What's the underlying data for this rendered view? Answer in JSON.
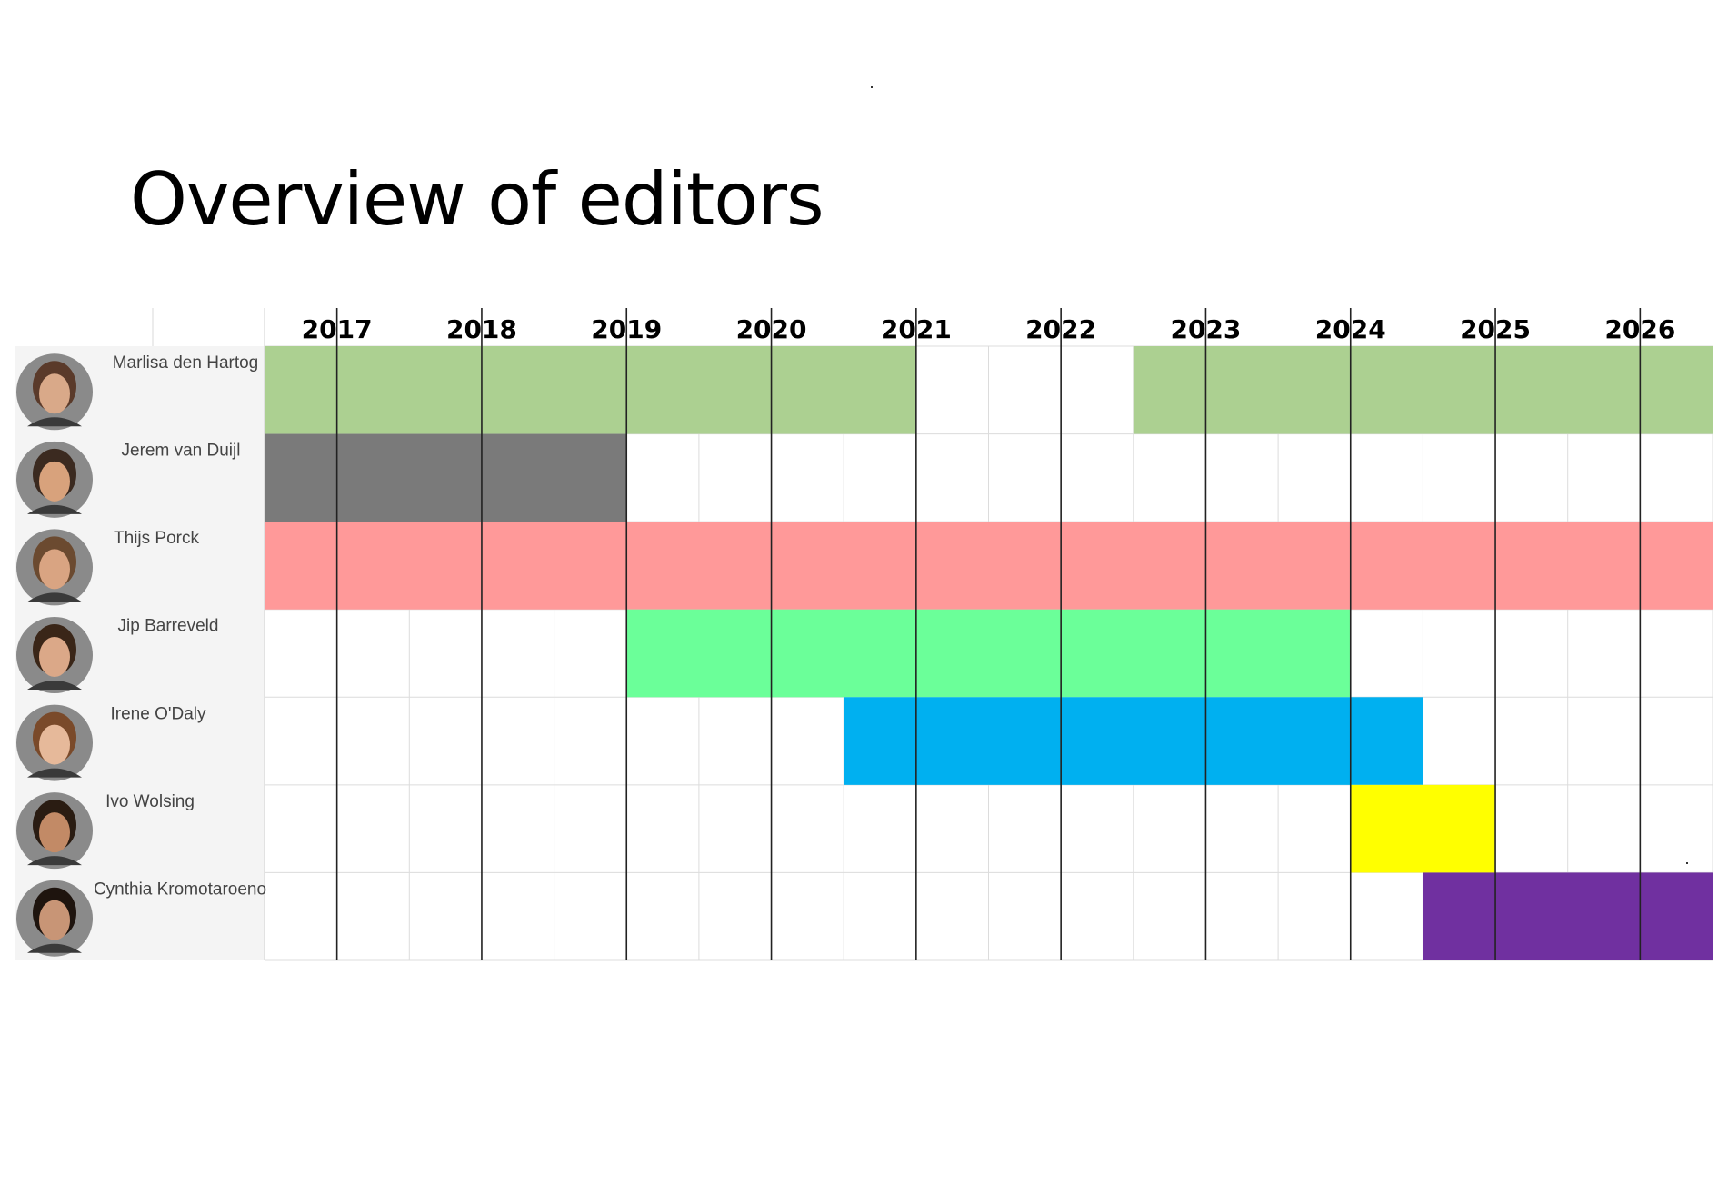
{
  "title": "Overview of editors",
  "chart_data": {
    "type": "bar",
    "subtype": "gantt",
    "title": "Overview of editors",
    "x_unit": "year",
    "xlim": [
      2016.5,
      2026.5
    ],
    "categories": [
      "2017",
      "2018",
      "2019",
      "2020",
      "2021",
      "2022",
      "2023",
      "2024",
      "2025",
      "2026"
    ],
    "editors": [
      {
        "name": "Marlisa den Hartog",
        "color": "#acd091",
        "skin": "#d9a989",
        "hair": "#5a3a2a",
        "periods": [
          {
            "start": 2016.5,
            "end": 2021.0
          },
          {
            "start": 2022.5,
            "end": 2026.5
          }
        ]
      },
      {
        "name": "Jerem van Duijl",
        "color": "#7a7a7a",
        "skin": "#d8a27c",
        "hair": "#3b2a20",
        "periods": [
          {
            "start": 2016.5,
            "end": 2019.0
          }
        ]
      },
      {
        "name": "Thijs Porck",
        "color": "#ff9999",
        "skin": "#d9a482",
        "hair": "#6b4a30",
        "periods": [
          {
            "start": 2016.5,
            "end": 2026.5
          }
        ]
      },
      {
        "name": "Jip Barreveld",
        "color": "#6bff99",
        "skin": "#dba888",
        "hair": "#3a2618",
        "periods": [
          {
            "start": 2019.0,
            "end": 2024.0
          }
        ]
      },
      {
        "name": "Irene O'Daly",
        "color": "#00b0f0",
        "skin": "#e6b99a",
        "hair": "#7a4a2a",
        "periods": [
          {
            "start": 2020.5,
            "end": 2024.5
          }
        ]
      },
      {
        "name": "Ivo Wolsing",
        "color": "#ffff00",
        "skin": "#c28a66",
        "hair": "#2a1c12",
        "periods": [
          {
            "start": 2024.0,
            "end": 2025.0
          }
        ]
      },
      {
        "name": "Cynthia Kromotaroeno",
        "color": "#7030a0",
        "skin": "#c89576",
        "hair": "#1e140e",
        "periods": [
          {
            "start": 2024.5,
            "end": 2026.5
          }
        ]
      }
    ]
  }
}
